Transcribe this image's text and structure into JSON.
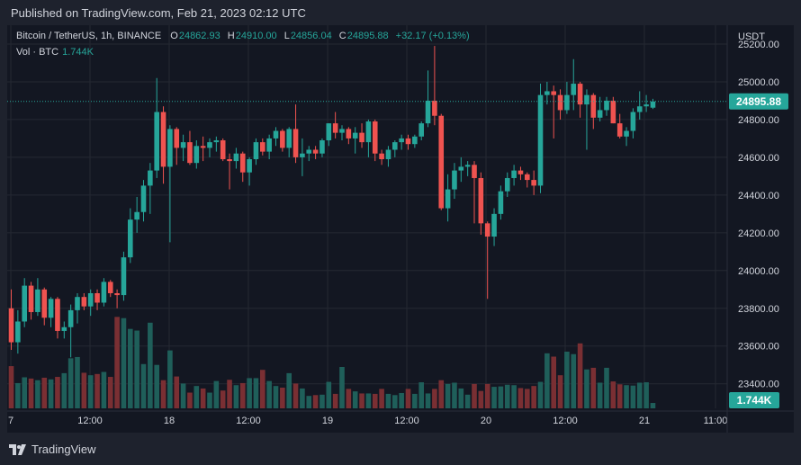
{
  "header": {
    "published": "Published on TradingView.com, Feb 21, 2023 02:12 UTC"
  },
  "legend": {
    "symbol": "Bitcoin / TetherUS, 1h, BINANCE",
    "o_label": "O",
    "o_value": "24862.93",
    "h_label": "H",
    "h_value": "24910.00",
    "l_label": "L",
    "l_value": "24856.04",
    "c_label": "C",
    "c_value": "24895.88",
    "change": "+32.17 (+0.13%)",
    "vol_label": "Vol · BTC",
    "vol_value": "1.744K"
  },
  "footer": {
    "brand": "TradingView",
    "logo_icon": "tradingview-logo-icon"
  },
  "colors": {
    "up": "#26a69a",
    "down": "#ef5350",
    "vol_up": "#1f5f5a",
    "vol_down": "#7a2f33",
    "grid": "#242832",
    "background": "#131722"
  },
  "chart_data": {
    "type": "candlestick",
    "currency_label": "USDT",
    "y_ticks": [
      "25200.00",
      "25000.00",
      "24800.00",
      "24600.00",
      "24400.00",
      "24200.00",
      "24000.00",
      "23800.00",
      "23600.00",
      "23400.00"
    ],
    "ylim": [
      23270,
      25300
    ],
    "x_ticks": [
      "7",
      "12:00",
      "18",
      "12:00",
      "19",
      "12:00",
      "20",
      "12:00",
      "21",
      "11:00"
    ],
    "last_price_label": "24895.88",
    "last_volume_label": "1.744K",
    "last_close": 24895.88,
    "candles": [
      [
        23800,
        23900,
        23580,
        23620
      ],
      [
        23620,
        23790,
        23560,
        23730
      ],
      [
        23730,
        23960,
        23700,
        23920
      ],
      [
        23920,
        23940,
        23740,
        23780
      ],
      [
        23780,
        23960,
        23760,
        23900
      ],
      [
        23900,
        23910,
        23710,
        23750
      ],
      [
        23750,
        23860,
        23700,
        23850
      ],
      [
        23850,
        23860,
        23640,
        23680
      ],
      [
        23680,
        23730,
        23640,
        23700
      ],
      [
        23700,
        23820,
        23540,
        23790
      ],
      [
        23790,
        23880,
        23720,
        23860
      ],
      [
        23860,
        23880,
        23790,
        23810
      ],
      [
        23810,
        23900,
        23760,
        23880
      ],
      [
        23880,
        23900,
        23790,
        23830
      ],
      [
        23830,
        23960,
        23810,
        23940
      ],
      [
        23940,
        23950,
        23860,
        23880
      ],
      [
        23880,
        23900,
        23800,
        23870
      ],
      [
        23870,
        24100,
        23840,
        24070
      ],
      [
        24070,
        24330,
        24040,
        24270
      ],
      [
        24270,
        24390,
        24200,
        24310
      ],
      [
        24310,
        24480,
        24260,
        24450
      ],
      [
        24450,
        24570,
        24300,
        24530
      ],
      [
        24530,
        25020,
        24490,
        24840
      ],
      [
        24840,
        24870,
        24460,
        24550
      ],
      [
        24550,
        24770,
        24150,
        24750
      ],
      [
        24750,
        24760,
        24560,
        24650
      ],
      [
        24650,
        24720,
        24580,
        24680
      ],
      [
        24680,
        24740,
        24560,
        24570
      ],
      [
        24570,
        24690,
        24540,
        24660
      ],
      [
        24660,
        24710,
        24580,
        24650
      ],
      [
        24650,
        24700,
        24600,
        24680
      ],
      [
        24680,
        24710,
        24630,
        24690
      ],
      [
        24690,
        24700,
        24580,
        24590
      ],
      [
        24590,
        24620,
        24430,
        24580
      ],
      [
        24580,
        24650,
        24540,
        24620
      ],
      [
        24620,
        24630,
        24470,
        24520
      ],
      [
        24520,
        24600,
        24450,
        24590
      ],
      [
        24590,
        24700,
        24560,
        24680
      ],
      [
        24680,
        24700,
        24610,
        24630
      ],
      [
        24630,
        24720,
        24590,
        24700
      ],
      [
        24700,
        24760,
        24660,
        24740
      ],
      [
        24740,
        24750,
        24630,
        24650
      ],
      [
        24650,
        24760,
        24600,
        24750
      ],
      [
        24750,
        24880,
        24570,
        24600
      ],
      [
        24600,
        24700,
        24500,
        24620
      ],
      [
        24620,
        24660,
        24580,
        24640
      ],
      [
        24640,
        24660,
        24590,
        24620
      ],
      [
        24620,
        24700,
        24600,
        24690
      ],
      [
        24690,
        24780,
        24660,
        24780
      ],
      [
        24780,
        24840,
        24700,
        24730
      ],
      [
        24730,
        24770,
        24690,
        24750
      ],
      [
        24750,
        24760,
        24670,
        24700
      ],
      [
        24700,
        24760,
        24620,
        24730
      ],
      [
        24730,
        24780,
        24650,
        24680
      ],
      [
        24680,
        24800,
        24600,
        24790
      ],
      [
        24790,
        24800,
        24580,
        24620
      ],
      [
        24620,
        24640,
        24560,
        24590
      ],
      [
        24590,
        24660,
        24550,
        24640
      ],
      [
        24640,
        24690,
        24600,
        24680
      ],
      [
        24680,
        24720,
        24640,
        24700
      ],
      [
        24700,
        24720,
        24640,
        24670
      ],
      [
        24670,
        24720,
        24650,
        24710
      ],
      [
        24710,
        24790,
        24690,
        24780
      ],
      [
        24780,
        25060,
        24760,
        24900
      ],
      [
        24900,
        25190,
        24770,
        24820
      ],
      [
        24820,
        24830,
        24320,
        24330
      ],
      [
        24330,
        24510,
        24260,
        24430
      ],
      [
        24430,
        24570,
        24380,
        24530
      ],
      [
        24530,
        24600,
        24470,
        24550
      ],
      [
        24550,
        24580,
        24500,
        24560
      ],
      [
        24560,
        24580,
        24250,
        24490
      ],
      [
        24490,
        24520,
        24190,
        24250
      ],
      [
        24250,
        24260,
        23850,
        24180
      ],
      [
        24180,
        24330,
        24130,
        24300
      ],
      [
        24300,
        24450,
        24270,
        24420
      ],
      [
        24420,
        24520,
        24390,
        24490
      ],
      [
        24490,
        24560,
        24450,
        24530
      ],
      [
        24530,
        24550,
        24480,
        24510
      ],
      [
        24510,
        24520,
        24440,
        24480
      ],
      [
        24480,
        24530,
        24400,
        24450
      ],
      [
        24450,
        24990,
        24410,
        24930
      ],
      [
        24930,
        25000,
        24880,
        24950
      ],
      [
        24950,
        24980,
        24700,
        24930
      ],
      [
        24930,
        24960,
        24800,
        24850
      ],
      [
        24850,
        25000,
        24830,
        24930
      ],
      [
        24930,
        25120,
        24850,
        24990
      ],
      [
        24990,
        25000,
        24810,
        24880
      ],
      [
        24880,
        24960,
        24640,
        24930
      ],
      [
        24930,
        24940,
        24750,
        24810
      ],
      [
        24810,
        24920,
        24790,
        24850
      ],
      [
        24850,
        24920,
        24820,
        24900
      ],
      [
        24900,
        24920,
        24780,
        24780
      ],
      [
        24780,
        24830,
        24700,
        24710
      ],
      [
        24710,
        24760,
        24660,
        24740
      ],
      [
        24740,
        24860,
        24700,
        24840
      ],
      [
        24840,
        24950,
        24800,
        24870
      ],
      [
        24870,
        24930,
        24840,
        24880
      ],
      [
        24862.93,
        24910,
        24856.04,
        24895.88
      ]
    ],
    "volumes": [
      1.02,
      0.61,
      0.75,
      0.72,
      0.68,
      0.74,
      0.7,
      0.76,
      0.85,
      1.21,
      1.24,
      0.86,
      0.8,
      0.83,
      0.88,
      0.76,
      2.21,
      2.18,
      1.92,
      1.88,
      1.07,
      2.07,
      1.05,
      0.68,
      1.4,
      0.77,
      0.6,
      0.38,
      0.54,
      0.48,
      0.38,
      0.66,
      0.43,
      0.69,
      0.56,
      0.61,
      0.73,
      0.73,
      0.93,
      0.66,
      0.54,
      0.5,
      0.85,
      0.6,
      0.48,
      0.3,
      0.32,
      0.33,
      0.64,
      0.35,
      1.0,
      0.47,
      0.41,
      0.36,
      0.36,
      0.35,
      0.47,
      0.35,
      0.32,
      0.37,
      0.47,
      0.35,
      0.63,
      0.36,
      0.47,
      0.68,
      0.59,
      0.62,
      0.48,
      0.33,
      0.59,
      0.42,
      0.59,
      0.52,
      0.53,
      0.57,
      0.56,
      0.49,
      0.47,
      0.54,
      0.64,
      1.33,
      1.25,
      0.8,
      1.37,
      1.31,
      1.57,
      0.94,
      0.98,
      0.62,
      0.98,
      0.65,
      0.58,
      0.56,
      0.55,
      0.62,
      0.63,
      0.13
    ],
    "vol_max": 2.5
  }
}
